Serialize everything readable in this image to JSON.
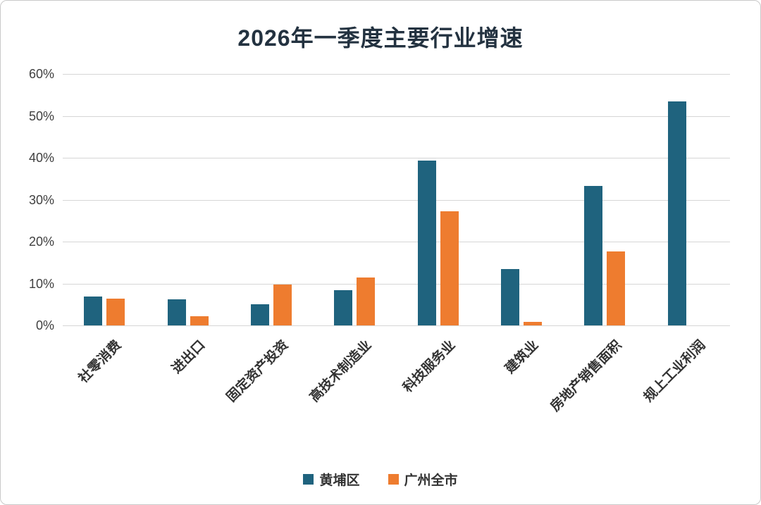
{
  "chart_data": {
    "type": "bar",
    "title": "2026年一季度主要行业增速",
    "categories": [
      "社零消费",
      "进出口",
      "固定资产投资",
      "高技术制造业",
      "科技服务业",
      "建筑业",
      "房地产销售面积",
      "规上工业利润"
    ],
    "series": [
      {
        "name": "黄埔区",
        "color": "#1f637e",
        "values": [
          6.9,
          6.3,
          5.0,
          8.4,
          39.3,
          13.4,
          33.3,
          53.5
        ]
      },
      {
        "name": "广州全市",
        "color": "#ee7c2f",
        "values": [
          6.4,
          2.2,
          9.7,
          11.4,
          27.2,
          0.8,
          17.6,
          null
        ]
      }
    ],
    "ylabel": "",
    "xlabel": "",
    "ylim": [
      0,
      60
    ],
    "yticks": [
      "0%",
      "10%",
      "20%",
      "30%",
      "40%",
      "50%",
      "60%"
    ],
    "grid": true,
    "legend_position": "bottom"
  }
}
